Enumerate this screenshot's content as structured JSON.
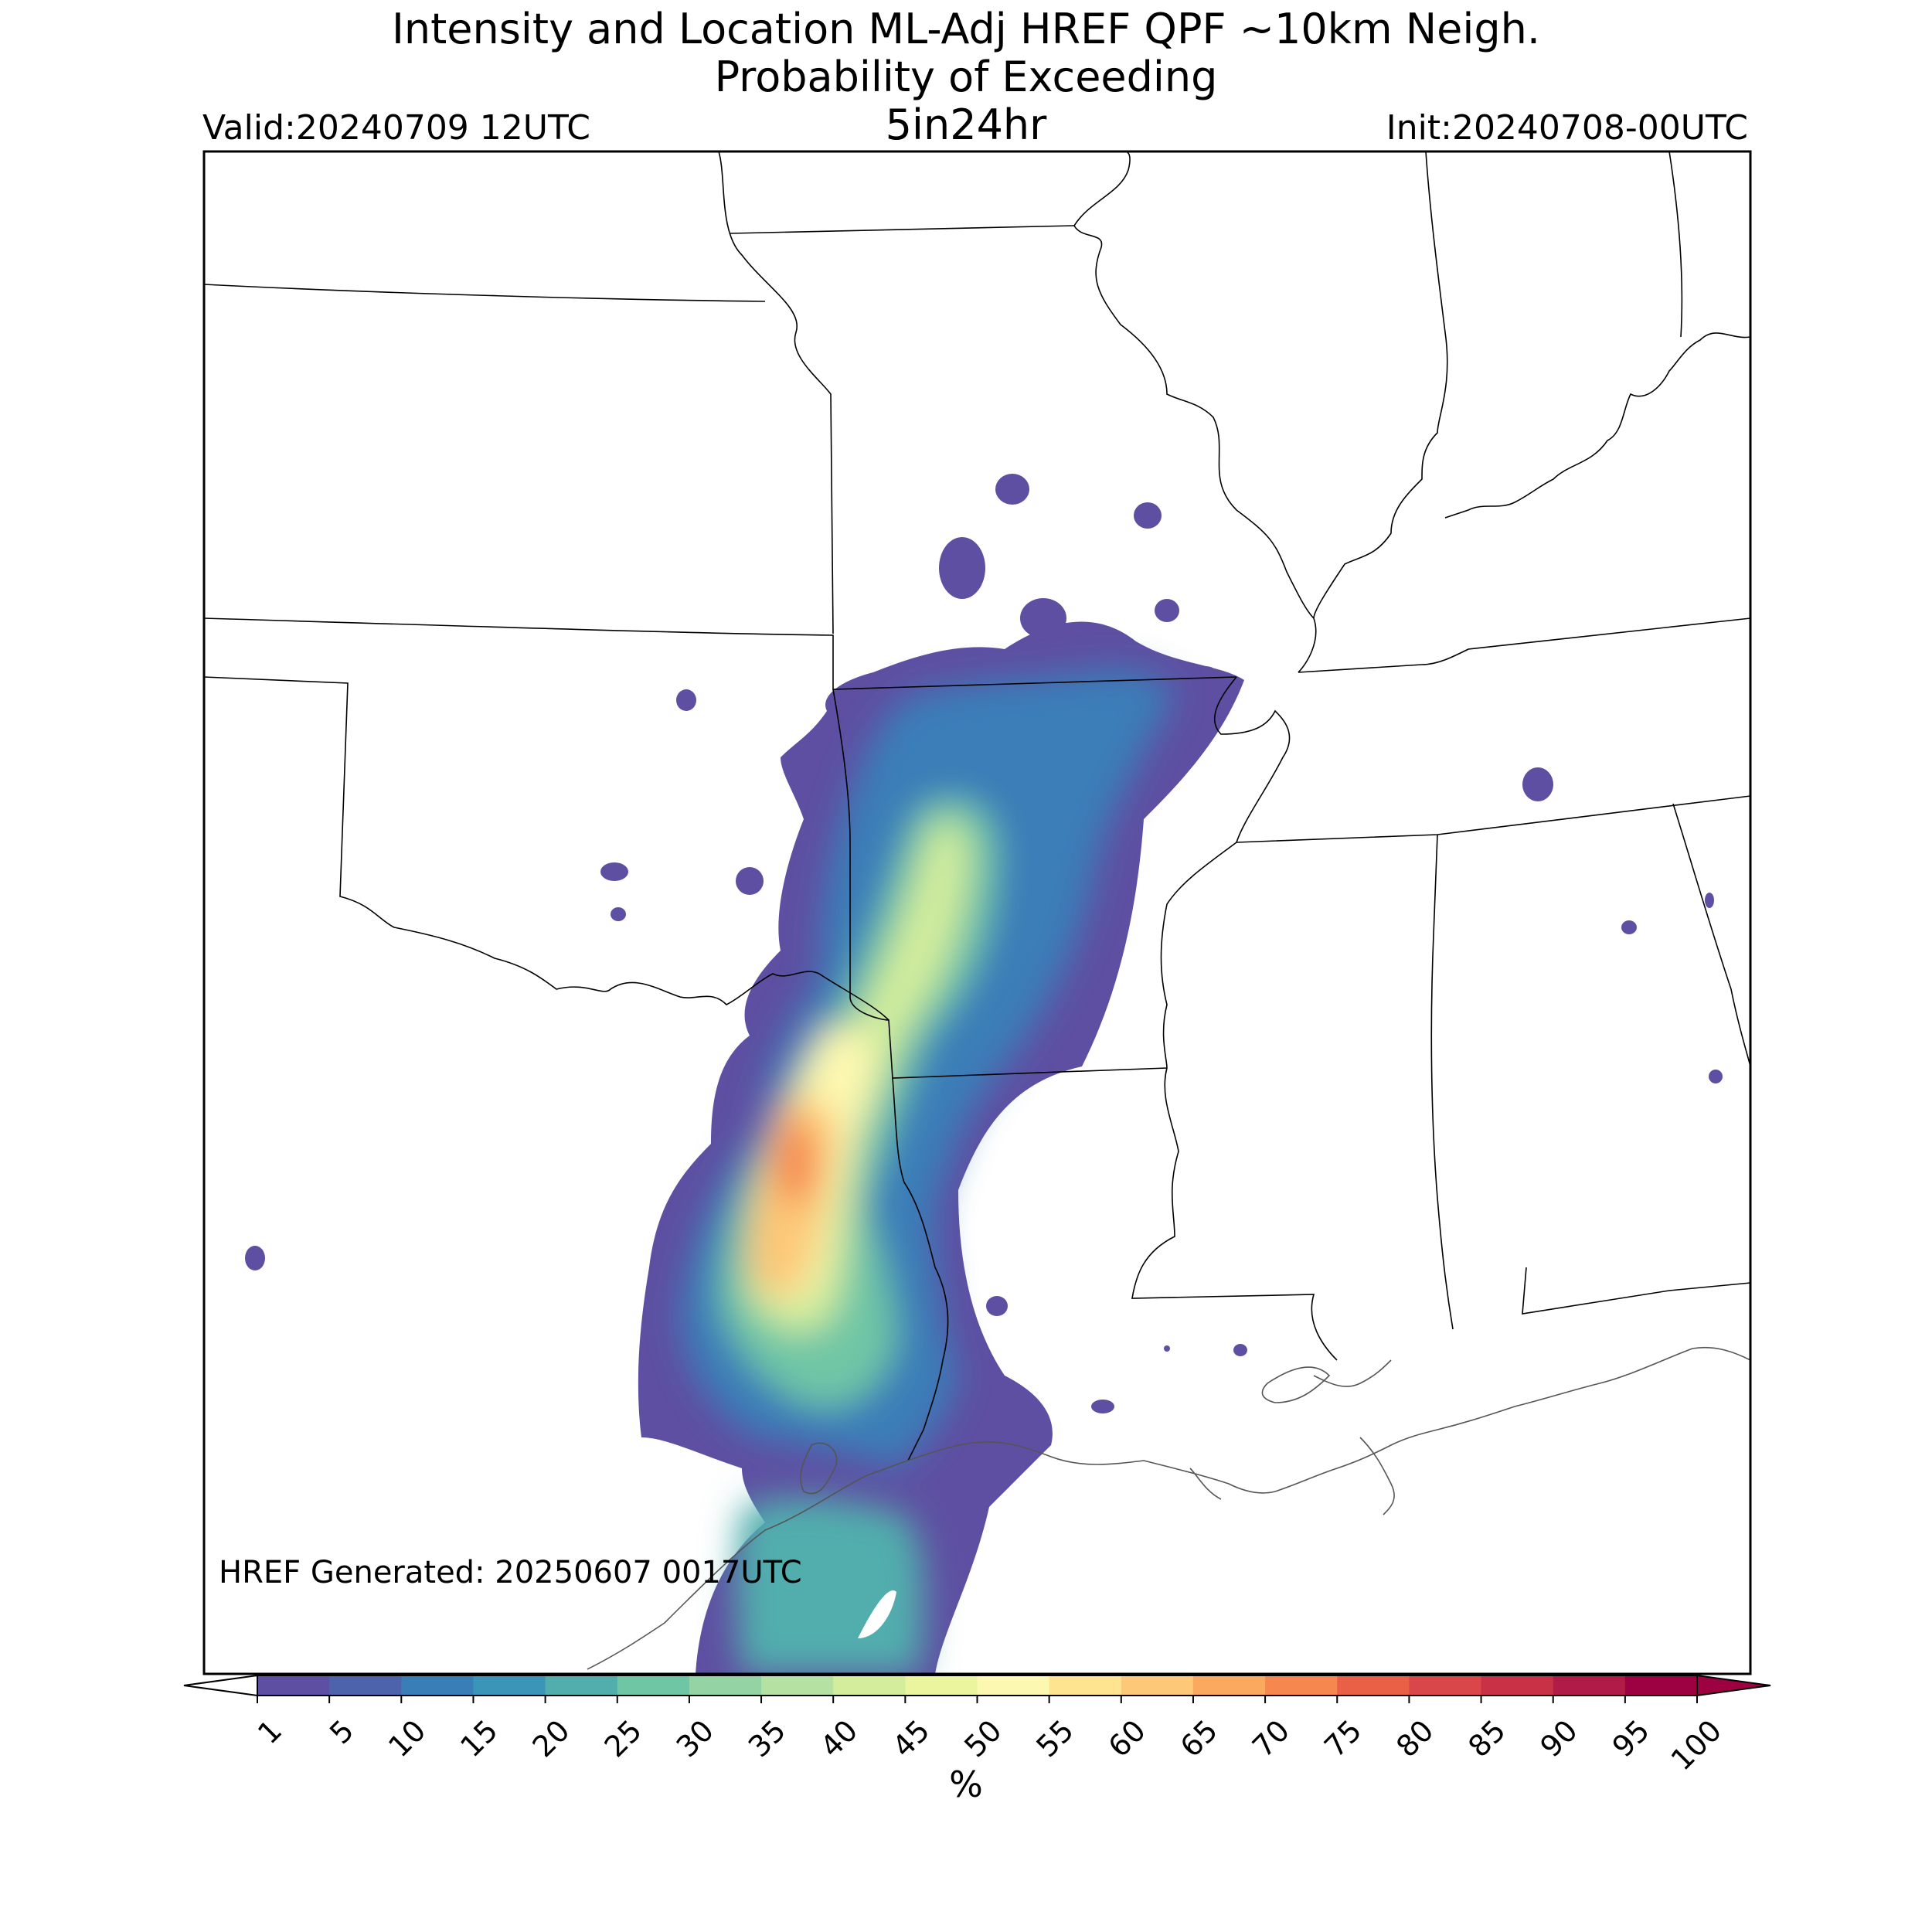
{
  "header": {
    "title_line1": "Intensity and Location ML-Adj HREF QPF ~10km Neigh.",
    "title_line2": "Probability of Exceeding",
    "title_line3": "5in24hr",
    "valid": "Valid:20240709 12UTC",
    "init": "Init:20240708-00UTC"
  },
  "map": {
    "generated_note": "HREF Generated: 20250607 0017UTC",
    "frame_color": "#000000",
    "border_color": "#000000",
    "coast_color": "#555555"
  },
  "colorbar": {
    "unit": "%",
    "ticks": [
      "1",
      "5",
      "10",
      "15",
      "20",
      "25",
      "30",
      "35",
      "40",
      "45",
      "50",
      "55",
      "60",
      "65",
      "70",
      "75",
      "80",
      "85",
      "90",
      "95",
      "100"
    ],
    "colors": [
      "#5e4fa2",
      "#4d64ad",
      "#3a7eb8",
      "#3a95b8",
      "#51aead",
      "#6fc6a5",
      "#93d3a4",
      "#b5e1a2",
      "#d3ed9c",
      "#eaf59d",
      "#fdf8b1",
      "#fee491",
      "#fdc877",
      "#fba95f",
      "#f6884f",
      "#ea6047",
      "#d9474a",
      "#c93246",
      "#b11b48",
      "#9e0142"
    ],
    "under_color": "#ffffff",
    "over_color": "#9e0142"
  },
  "precip_field": {
    "value_unit": "%",
    "max_level_shown": 70,
    "core_region": "southeast Texas into western Louisiana and southwest Arkansas"
  }
}
